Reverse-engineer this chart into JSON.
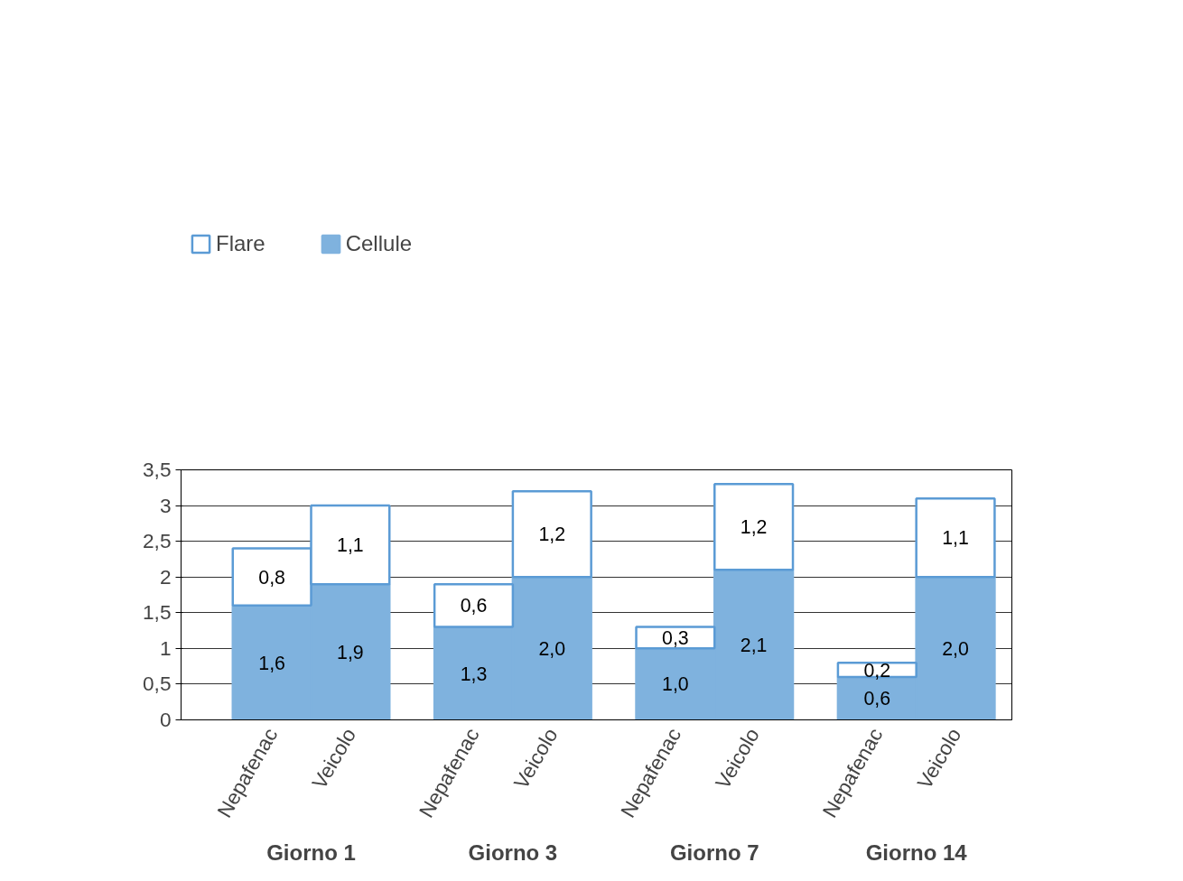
{
  "chart_data": {
    "type": "bar",
    "stacked": true,
    "categories": [
      "Nepafenac",
      "Veicolo",
      "Nepafenac",
      "Veicolo",
      "Nepafenac",
      "Veicolo",
      "Nepafenac",
      "Veicolo"
    ],
    "series": [
      {
        "name": "Cellule",
        "color": "#7fb2de",
        "values": [
          1.6,
          1.9,
          1.3,
          2.0,
          1.0,
          2.1,
          0.6,
          2.0
        ],
        "value_labels": [
          "1,6",
          "1,9",
          "1,3",
          "2,0",
          "1,0",
          "2,1",
          "0,6",
          "2,0"
        ]
      },
      {
        "name": "Flare",
        "color": "#ffffff",
        "values": [
          0.8,
          1.1,
          0.6,
          1.2,
          0.3,
          1.2,
          0.2,
          1.1
        ],
        "value_labels": [
          "0,8",
          "1,1",
          "0,6",
          "1,2",
          "0,3",
          "1,2",
          "0,2",
          "1,1"
        ]
      }
    ],
    "annotations": [
      "Giorno 1",
      "Giorno 3",
      "Giorno 7",
      "Giorno 14"
    ],
    "ylim": [
      0,
      3.5
    ],
    "yticks": [
      0,
      {
        "value": 0.5,
        "label": "0,5"
      },
      1,
      {
        "value": 1.5,
        "label": "1,5"
      },
      2,
      {
        "value": 2.5,
        "label": "2,5"
      },
      3,
      {
        "value": 3.5,
        "label": "3,5"
      }
    ],
    "grid": "y",
    "legend": "top left"
  }
}
